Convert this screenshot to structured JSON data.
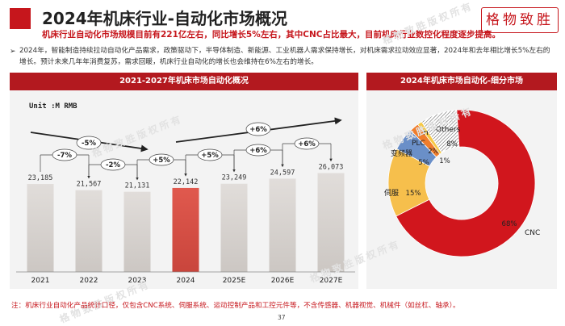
{
  "header": {
    "title": "2024年机床行业-自动化市场概况",
    "subtitle": "机床行业自动化市场规模目前有221亿左右，同比增长5%左右，其中CNC占比最大，目前机床行业数控化程度逐步提高。",
    "brand": "格物致胜"
  },
  "description": "2024年，智能制造持续拉动自动化产品需求，政策驱动下，半导体制造、新能源、工业机器人需求保持增长，对机床需求拉动效应显著，2024年和去年相比增长5%左右的增长。预计未来几年年消费复苏，需求回暖，机床行业自动化的增长也会维持在6%左右的增长。",
  "bullet": "➢",
  "watermark": "格物致胜版权所有",
  "footnote": "注：机床行业自动化产品统计口径，仅包含CNC系统、伺服系统、运动控制产品和工控元件等，不含传感器、机器视觉、机械件（如丝杠、轴承）。",
  "page_number": "37",
  "colors": {
    "accent": "#c6161c",
    "bar_default": "#d9d5d2",
    "bar_highlight": "#d94f45"
  },
  "chart_data": [
    {
      "type": "bar",
      "title": "2021-2027年机床市场自动化概况",
      "unit_label": "Unit :M RMB",
      "categories": [
        "2021",
        "2022",
        "2023",
        "2024",
        "2025E",
        "2026E",
        "2027E"
      ],
      "values": [
        23185,
        21567,
        21131,
        22142,
        23249,
        24597,
        26073
      ],
      "value_labels": [
        "23,185",
        "21,567",
        "21,131",
        "22,142",
        "23,249",
        "24,597",
        "26,073"
      ],
      "highlight_index": 3,
      "ylim": [
        0,
        32000
      ],
      "growth_annotations": [
        {
          "label": "-7%",
          "from": 0,
          "to": 1
        },
        {
          "label": "-2%",
          "from": 1,
          "to": 2
        },
        {
          "label": "+5%",
          "from": 2,
          "to": 3
        },
        {
          "label": "+5%",
          "from": 3,
          "to": 4
        },
        {
          "label": "+6%",
          "from": 4,
          "to": 5
        },
        {
          "label": "+6%",
          "from": 5,
          "to": 6
        }
      ],
      "trend_annotations": [
        {
          "label": "-5%",
          "from": 0,
          "to": 2,
          "direction": "down"
        },
        {
          "label": "+6%",
          "from": 3,
          "to": 6,
          "direction": "up"
        }
      ]
    },
    {
      "type": "pie",
      "title": "2024年机床市场自动化-细分市场",
      "slices": [
        {
          "name": "CNC",
          "value": 68,
          "label": "68%",
          "color": "#d1161d"
        },
        {
          "name": "伺服",
          "value": 15,
          "label": "15%",
          "color": "#f6bf4c"
        },
        {
          "name": "变频器",
          "value": 5,
          "label": "5%",
          "color": "#6a8fc8"
        },
        {
          "name": "PLC",
          "value": 2,
          "label": "2%",
          "color": "#f07d2c"
        },
        {
          "name": "HMI",
          "value": 1,
          "label": "1%",
          "color": "#f6c945"
        },
        {
          "name": "Others",
          "value": 8,
          "label": "8%",
          "color": "#ffffff",
          "hatched": true
        }
      ]
    }
  ]
}
